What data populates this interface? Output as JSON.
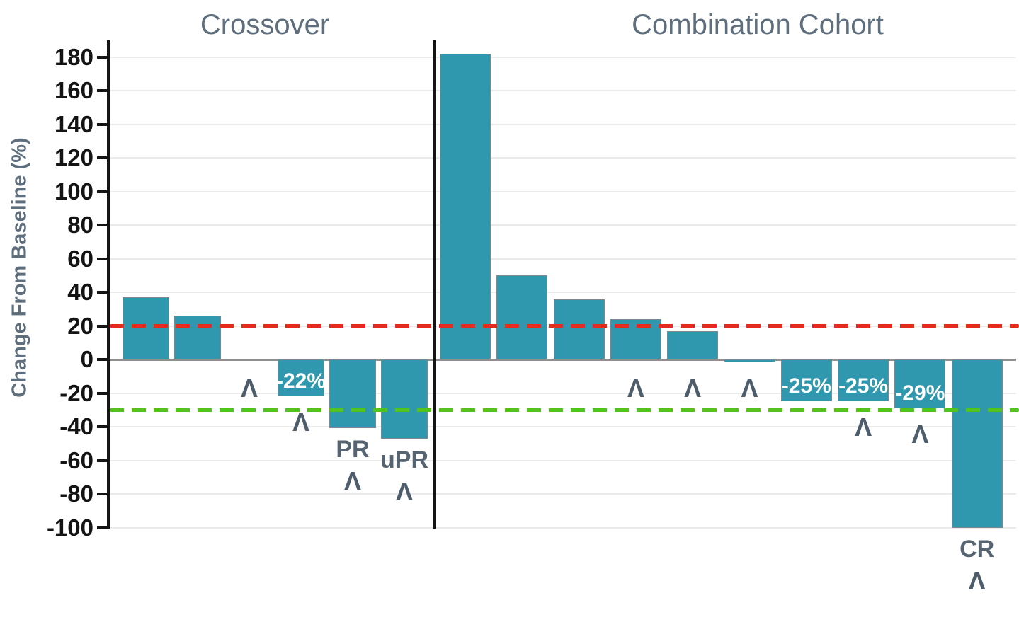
{
  "chart_data": {
    "type": "bar",
    "title": "",
    "ylabel": "Change From Baseline (%)",
    "ylim": [
      -100,
      180
    ],
    "yticks": [
      180,
      160,
      140,
      120,
      100,
      80,
      60,
      40,
      20,
      0,
      -20,
      -40,
      -60,
      -80,
      -100
    ],
    "grid": true,
    "bar_color": "#2f98ae",
    "caret_glyph": "Λ",
    "reference_lines": [
      {
        "y": 20,
        "color": "#e62b1e",
        "style": "dashed"
      },
      {
        "y": -30,
        "color": "#53c21d",
        "style": "dashed"
      }
    ],
    "groups": [
      {
        "label": "Crossover",
        "points": [
          {
            "value": 37
          },
          {
            "value": 26
          },
          {
            "value": 0,
            "caret": true
          },
          {
            "value": -22,
            "label_in_bar": "-22%",
            "caret": true
          },
          {
            "value": -41,
            "label_below": "PR",
            "caret": true
          },
          {
            "value": -47,
            "label_below": "uPR",
            "caret": true
          }
        ]
      },
      {
        "label": "Combination Cohort",
        "points": [
          {
            "value": 182
          },
          {
            "value": 50
          },
          {
            "value": 36
          },
          {
            "value": 24,
            "caret": true
          },
          {
            "value": 17,
            "caret": true
          },
          {
            "value": -1.5,
            "caret": true
          },
          {
            "value": -25,
            "label_in_bar": "-25%"
          },
          {
            "value": -25,
            "label_in_bar": "-25%",
            "caret": true
          },
          {
            "value": -29,
            "label_in_bar": "-29%",
            "caret": true
          },
          {
            "value": -100,
            "label_below": "CR",
            "caret": true
          }
        ]
      }
    ]
  }
}
